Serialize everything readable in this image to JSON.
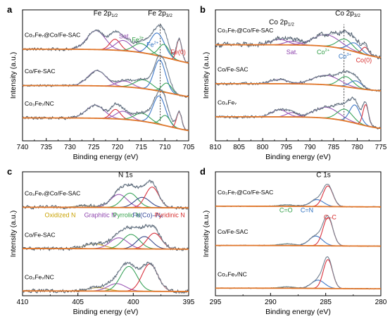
{
  "colors": {
    "raw": "#4d5a68",
    "envelope": "#5a6678",
    "background": "#e0762a",
    "red": "#d9333f",
    "green": "#3aa35a",
    "blue": "#3e78c8",
    "purple": "#9b59b6",
    "yellow": "#c9a227",
    "darkblue": "#3a4a8a",
    "teal": "#2aa9b8",
    "label_purple": "#8e44ad",
    "label_green": "#2e9d44",
    "label_blue": "#2c6fbf",
    "label_red": "#d62d2d",
    "label_yellow": "#c9a100",
    "label_navy": "#33479a"
  },
  "chart_data": [
    {
      "id": "a",
      "type": "line",
      "panel_label": "a",
      "title": "",
      "xlabel": "Binding energy (eV)",
      "ylabel": "Intensity (a.u.)",
      "xlim": [
        740,
        705
      ],
      "ylim": [
        0,
        3.6
      ],
      "xticks": [
        740,
        735,
        730,
        725,
        720,
        715,
        710,
        705
      ],
      "sample_names": [
        "Co₃Fe₇@Co/Fe-SAC",
        "Co/Fe-SAC",
        "Co₃Fe₇/NC"
      ],
      "headers": [
        {
          "text": "Fe 2p",
          "sub": "1/2",
          "x": 722.5,
          "y": 3.45,
          "color": "black"
        },
        {
          "text": "Fe 2p",
          "sub": "3/2",
          "x": 711,
          "y": 3.45,
          "color": "black"
        }
      ],
      "peak_labels": [
        {
          "text": "Sat.",
          "x": 718.5,
          "y": 2.82,
          "color": "label_purple"
        },
        {
          "text": "Fe",
          "sup": "3+",
          "x": 715.7,
          "y": 2.72,
          "color": "label_green"
        },
        {
          "text": "Fe",
          "sup": "2+",
          "x": 712.6,
          "y": 2.58,
          "color": "label_blue"
        },
        {
          "text": "Fe(0)",
          "x": 707.2,
          "y": 2.38,
          "color": "label_red"
        }
      ],
      "reference_line": {
        "x": 711.0,
        "y_range": [
          0.55,
          3.25
        ]
      },
      "spectra": [
        {
          "name": "Co₃Fe₇@Co/Fe-SAC",
          "offset": 2.0,
          "background": {
            "left": 0.52,
            "right": 0.0,
            "step_center": 709,
            "step_width": 4
          },
          "noise": 0.035,
          "peaks": [
            {
              "center": 724.5,
              "amplitude": 0.52,
              "width": 1.9,
              "color": "purple"
            },
            {
              "center": 720.5,
              "amplitude": 0.3,
              "width": 1.1,
              "color": "red"
            },
            {
              "center": 718.8,
              "amplitude": 0.28,
              "width": 1.6,
              "color": "purple"
            },
            {
              "center": 715.0,
              "amplitude": 0.25,
              "width": 1.6,
              "color": "green"
            },
            {
              "center": 711.6,
              "amplitude": 0.62,
              "width": 1.5,
              "color": "blue"
            },
            {
              "center": 710.2,
              "amplitude": 0.35,
              "width": 1.1,
              "color": "green"
            },
            {
              "center": 707.0,
              "amplitude": 0.6,
              "width": 0.55,
              "color": "red"
            }
          ]
        },
        {
          "name": "Co/Fe-SAC",
          "offset": 1.1,
          "background": {
            "left": 0.42,
            "right": 0.0,
            "step_center": 709,
            "step_width": 4
          },
          "noise": 0.025,
          "peaks": [
            {
              "center": 724.3,
              "amplitude": 0.42,
              "width": 1.9,
              "color": "purple"
            },
            {
              "center": 718.5,
              "amplitude": 0.16,
              "width": 1.6,
              "color": "purple"
            },
            {
              "center": 714.5,
              "amplitude": 0.24,
              "width": 1.8,
              "color": "green"
            },
            {
              "center": 711.1,
              "amplitude": 0.86,
              "width": 1.2,
              "color": "blue"
            },
            {
              "center": 709.6,
              "amplitude": 0.26,
              "width": 1.0,
              "color": "green"
            }
          ]
        },
        {
          "name": "Co₃Fe₇/NC",
          "offset": 0.15,
          "background": {
            "left": 0.48,
            "right": 0.0,
            "step_center": 709,
            "step_width": 4
          },
          "noise": 0.035,
          "peaks": [
            {
              "center": 724.7,
              "amplitude": 0.36,
              "width": 1.9,
              "color": "purple"
            },
            {
              "center": 720.4,
              "amplitude": 0.26,
              "width": 1.0,
              "color": "red"
            },
            {
              "center": 718.8,
              "amplitude": 0.22,
              "width": 1.5,
              "color": "purple"
            },
            {
              "center": 714.8,
              "amplitude": 0.22,
              "width": 1.6,
              "color": "green"
            },
            {
              "center": 711.2,
              "amplitude": 0.78,
              "width": 1.3,
              "color": "blue"
            },
            {
              "center": 709.9,
              "amplitude": 0.28,
              "width": 1.0,
              "color": "green"
            },
            {
              "center": 707.0,
              "amplitude": 0.46,
              "width": 0.55,
              "color": "red"
            }
          ]
        }
      ]
    },
    {
      "id": "b",
      "type": "line",
      "panel_label": "b",
      "title": "",
      "xlabel": "Binding energy (eV)",
      "ylabel": "Intensity (a.u.)",
      "xlim": [
        810,
        775
      ],
      "ylim": [
        0,
        3.6
      ],
      "xticks": [
        810,
        805,
        800,
        795,
        790,
        785,
        780,
        775
      ],
      "sample_names": [
        "Co₃Fe₇@Co/Fe-SAC",
        "Co/Fe-SAC",
        "Co₃Fe₇"
      ],
      "headers": [
        {
          "text": "Co 2p",
          "sub": "1/2",
          "x": 796,
          "y": 3.2,
          "color": "black"
        },
        {
          "text": "Co 2p",
          "sub": "3/2",
          "x": 782,
          "y": 3.45,
          "color": "black"
        }
      ],
      "peak_labels": [
        {
          "text": "Sat.",
          "x": 793.8,
          "y": 2.38,
          "color": "label_purple"
        },
        {
          "text": "Co",
          "sup": "2+",
          "x": 787.2,
          "y": 2.38,
          "color": "label_green"
        },
        {
          "text": "Co",
          "sup": "3+",
          "x": 782.6,
          "y": 2.26,
          "color": "label_blue"
        },
        {
          "text": "Co(0)",
          "x": 778.6,
          "y": 2.16,
          "color": "label_red"
        }
      ],
      "reference_line": {
        "x": 782.8,
        "y_range": [
          0.55,
          3.2
        ]
      },
      "spectra": [
        {
          "name": "Co₃Fe₇@Co/Fe-SAC",
          "offset": 2.22,
          "background": {
            "left": 0.42,
            "right": 0.0,
            "step_center": 780,
            "step_width": 3
          },
          "noise": 0.06,
          "peaks": [
            {
              "center": 796.5,
              "amplitude": 0.15,
              "width": 1.8,
              "color": "purple"
            },
            {
              "center": 793.8,
              "amplitude": 0.1,
              "width": 1.5,
              "color": "purple"
            },
            {
              "center": 786.5,
              "amplitude": 0.32,
              "width": 2.8,
              "color": "purple"
            },
            {
              "center": 782.6,
              "amplitude": 0.28,
              "width": 1.6,
              "color": "green"
            },
            {
              "center": 780.6,
              "amplitude": 0.24,
              "width": 1.3,
              "color": "blue"
            },
            {
              "center": 778.3,
              "amplitude": 0.2,
              "width": 0.7,
              "color": "red"
            }
          ]
        },
        {
          "name": "Co/Fe-SAC",
          "offset": 1.35,
          "background": {
            "left": 0.22,
            "right": 0.0,
            "step_center": 781,
            "step_width": 3
          },
          "noise": 0.03,
          "peaks": [
            {
              "center": 796.5,
              "amplitude": 0.12,
              "width": 1.8,
              "color": "purple"
            },
            {
              "center": 786.5,
              "amplitude": 0.26,
              "width": 2.8,
              "color": "purple"
            },
            {
              "center": 782.4,
              "amplitude": 0.28,
              "width": 1.5,
              "color": "green"
            },
            {
              "center": 780.3,
              "amplitude": 0.2,
              "width": 1.3,
              "color": "blue"
            }
          ]
        },
        {
          "name": "Co₃Fe₇",
          "offset": 0.28,
          "background": {
            "left": 0.38,
            "right": 0.0,
            "step_center": 780,
            "step_width": 3
          },
          "noise": 0.035,
          "peaks": [
            {
              "center": 796.5,
              "amplitude": 0.2,
              "width": 1.6,
              "color": "purple"
            },
            {
              "center": 793.8,
              "amplitude": 0.12,
              "width": 1.2,
              "color": "purple"
            },
            {
              "center": 786.5,
              "amplitude": 0.3,
              "width": 2.6,
              "color": "purple"
            },
            {
              "center": 782.6,
              "amplitude": 0.32,
              "width": 1.6,
              "color": "green"
            },
            {
              "center": 780.5,
              "amplitude": 0.5,
              "width": 1.1,
              "color": "blue"
            },
            {
              "center": 778.2,
              "amplitude": 0.58,
              "width": 0.6,
              "color": "red"
            }
          ]
        }
      ]
    },
    {
      "id": "c",
      "type": "line",
      "panel_label": "c",
      "title": "",
      "xlabel": "Binding energy (eV)",
      "ylabel": "Intensity (a.u.)",
      "xlim": [
        410,
        395
      ],
      "ylim": [
        0,
        3.6
      ],
      "xticks": [
        410,
        405,
        400,
        395
      ],
      "sample_names": [
        "Co₃Fe₇@Co/Fe-SAC",
        "Co/Fe-SAC",
        "Co₃Fe₇/NC"
      ],
      "headers": [
        {
          "text": "N 1s",
          "x": 400.7,
          "y": 3.45,
          "color": "black"
        }
      ],
      "peak_labels": [
        {
          "text": "Oxidized N",
          "x": 406.6,
          "y": 2.28,
          "color": "label_yellow"
        },
        {
          "text": "Graphitic N",
          "x": 403.0,
          "y": 2.28,
          "color": "label_purple"
        },
        {
          "text": "Pyrrolic N",
          "x": 400.6,
          "y": 2.28,
          "color": "label_green"
        },
        {
          "text": "Fe(Co)–Nₓ",
          "x": 398.7,
          "y": 2.28,
          "color": "label_navy"
        },
        {
          "text": "Pyridinic N",
          "x": 396.7,
          "y": 2.28,
          "color": "label_red"
        }
      ],
      "spectra": [
        {
          "name": "Co₃Fe₇@Co/Fe-SAC",
          "offset": 2.55,
          "background": {
            "left": 0.02,
            "right": 0.0,
            "step_center": 400,
            "step_width": 3
          },
          "noise": 0.04,
          "peaks": [
            {
              "center": 404.3,
              "amplitude": 0.05,
              "width": 0.9,
              "color": "yellow"
            },
            {
              "center": 401.3,
              "amplitude": 0.38,
              "width": 0.75,
              "color": "purple"
            },
            {
              "center": 400.3,
              "amplitude": 0.42,
              "width": 0.7,
              "color": "green"
            },
            {
              "center": 399.2,
              "amplitude": 0.3,
              "width": 0.7,
              "color": "darkblue"
            },
            {
              "center": 398.3,
              "amplitude": 0.6,
              "width": 0.6,
              "color": "red"
            }
          ]
        },
        {
          "name": "Co/Fe-SAC",
          "offset": 1.35,
          "background": {
            "left": 0.02,
            "right": 0.0,
            "step_center": 400,
            "step_width": 3
          },
          "noise": 0.045,
          "peaks": [
            {
              "center": 403.5,
              "amplitude": 0.14,
              "width": 0.9,
              "color": "yellow"
            },
            {
              "center": 401.3,
              "amplitude": 0.32,
              "width": 0.8,
              "color": "purple"
            },
            {
              "center": 400.2,
              "amplitude": 0.42,
              "width": 0.75,
              "color": "green"
            },
            {
              "center": 399.0,
              "amplitude": 0.36,
              "width": 0.7,
              "color": "darkblue"
            },
            {
              "center": 398.1,
              "amplitude": 0.46,
              "width": 0.65,
              "color": "red"
            }
          ]
        },
        {
          "name": "Co₃Fe₇/NC",
          "offset": 0.12,
          "background": {
            "left": 0.02,
            "right": 0.0,
            "step_center": 400,
            "step_width": 3
          },
          "noise": 0.045,
          "peaks": [
            {
              "center": 403.2,
              "amplitude": 0.1,
              "width": 0.9,
              "color": "yellow"
            },
            {
              "center": 401.5,
              "amplitude": 0.22,
              "width": 0.8,
              "color": "purple"
            },
            {
              "center": 400.4,
              "amplitude": 0.72,
              "width": 0.75,
              "color": "green"
            },
            {
              "center": 398.5,
              "amplitude": 0.8,
              "width": 0.7,
              "color": "red"
            }
          ]
        }
      ]
    },
    {
      "id": "d",
      "type": "line",
      "panel_label": "d",
      "title": "",
      "xlabel": "Binding energy (eV)",
      "ylabel": "Intensity (a.u.)",
      "xlim": [
        295,
        280
      ],
      "ylim": [
        0,
        3.6
      ],
      "xticks": [
        295,
        290,
        285,
        280
      ],
      "sample_names": [
        "Co₃Fe₇@Co/Fe-SAC",
        "Co/Fe-SAC",
        "Co₃Fe₇/NC"
      ],
      "headers": [
        {
          "text": "C 1s",
          "x": 285.2,
          "y": 3.45,
          "color": "black"
        }
      ],
      "peak_labels": [
        {
          "text": "C=O",
          "x": 288.6,
          "y": 2.42,
          "color": "label_green"
        },
        {
          "text": "C=N",
          "x": 286.7,
          "y": 2.42,
          "color": "label_blue"
        },
        {
          "text": "C–C",
          "x": 284.6,
          "y": 2.22,
          "color": "label_red"
        }
      ],
      "spectra": [
        {
          "name": "Co₃Fe₇@Co/Fe-SAC",
          "offset": 2.58,
          "background": {
            "left": 0.02,
            "right": 0.0,
            "step_center": 285,
            "step_width": 2
          },
          "noise": 0.01,
          "peaks": [
            {
              "center": 288.5,
              "amplitude": 0.04,
              "width": 0.7,
              "color": "green"
            },
            {
              "center": 285.8,
              "amplitude": 0.2,
              "width": 0.6,
              "color": "blue"
            },
            {
              "center": 284.8,
              "amplitude": 0.6,
              "width": 0.45,
              "color": "red"
            }
          ]
        },
        {
          "name": "Co/Fe-SAC",
          "offset": 1.44,
          "background": {
            "left": 0.02,
            "right": 0.0,
            "step_center": 285,
            "step_width": 2
          },
          "noise": 0.01,
          "peaks": [
            {
              "center": 288.5,
              "amplitude": 0.05,
              "width": 0.7,
              "color": "green"
            },
            {
              "center": 285.9,
              "amplitude": 0.28,
              "width": 0.6,
              "color": "blue"
            },
            {
              "center": 284.8,
              "amplitude": 0.82,
              "width": 0.45,
              "color": "red"
            }
          ]
        },
        {
          "name": "Co₃Fe₇/NC",
          "offset": 0.2,
          "background": {
            "left": 0.02,
            "right": 0.0,
            "step_center": 285,
            "step_width": 2
          },
          "noise": 0.01,
          "peaks": [
            {
              "center": 288.5,
              "amplitude": 0.04,
              "width": 0.7,
              "color": "green"
            },
            {
              "center": 285.7,
              "amplitude": 0.24,
              "width": 0.6,
              "color": "blue"
            },
            {
              "center": 284.8,
              "amplitude": 0.84,
              "width": 0.42,
              "color": "red"
            }
          ]
        }
      ]
    }
  ]
}
